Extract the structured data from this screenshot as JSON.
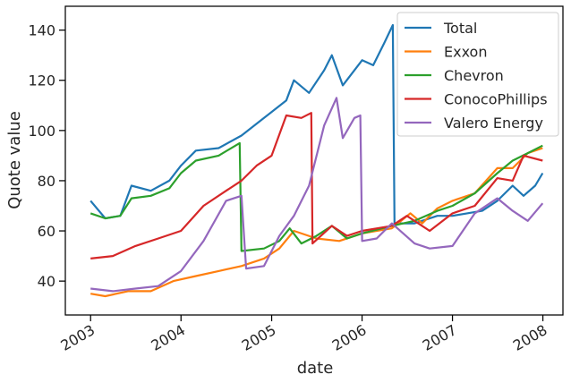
{
  "chart_data": {
    "type": "line",
    "xlabel": "date",
    "ylabel": "Quote value",
    "x_ticks": [
      "2003",
      "2004",
      "2005",
      "2006",
      "2007",
      "2008"
    ],
    "y_ticks": [
      40,
      60,
      80,
      100,
      120,
      140
    ],
    "xlim": [
      "2002-09-21",
      "2008-03-22"
    ],
    "ylim": [
      26.5,
      149.5
    ],
    "legend_position": "top-right",
    "grid": false,
    "series": [
      {
        "name": "Total",
        "color": "#1f77b4",
        "points": [
          [
            "2003-01-01",
            72
          ],
          [
            "2003-03-01",
            65
          ],
          [
            "2003-05-01",
            66
          ],
          [
            "2003-06-15",
            78
          ],
          [
            "2003-09-01",
            76
          ],
          [
            "2003-11-15",
            80
          ],
          [
            "2004-01-01",
            86
          ],
          [
            "2004-03-01",
            92
          ],
          [
            "2004-06-01",
            93
          ],
          [
            "2004-09-01",
            98
          ],
          [
            "2004-12-01",
            105
          ],
          [
            "2005-03-01",
            112
          ],
          [
            "2005-04-01",
            120
          ],
          [
            "2005-06-01",
            115
          ],
          [
            "2005-08-01",
            124
          ],
          [
            "2005-09-01",
            130
          ],
          [
            "2005-10-15",
            118
          ],
          [
            "2006-01-01",
            128
          ],
          [
            "2006-02-15",
            126
          ],
          [
            "2006-04-01",
            135
          ],
          [
            "2006-05-05",
            142
          ],
          [
            "2006-05-12",
            63
          ],
          [
            "2006-08-01",
            63
          ],
          [
            "2006-11-01",
            66
          ],
          [
            "2007-01-01",
            66
          ],
          [
            "2007-03-01",
            67
          ],
          [
            "2007-05-01",
            68
          ],
          [
            "2007-07-01",
            72
          ],
          [
            "2007-09-01",
            78
          ],
          [
            "2007-10-15",
            74
          ],
          [
            "2007-12-01",
            78
          ],
          [
            "2007-12-31",
            83
          ]
        ]
      },
      {
        "name": "Exxon",
        "color": "#ff7f0e",
        "points": [
          [
            "2003-01-01",
            35
          ],
          [
            "2003-03-01",
            34
          ],
          [
            "2003-06-01",
            36
          ],
          [
            "2003-09-01",
            36
          ],
          [
            "2003-12-01",
            40
          ],
          [
            "2004-03-01",
            42
          ],
          [
            "2004-06-01",
            44
          ],
          [
            "2004-09-01",
            46
          ],
          [
            "2004-12-01",
            49
          ],
          [
            "2005-02-01",
            53
          ],
          [
            "2005-04-01",
            60
          ],
          [
            "2005-07-01",
            57
          ],
          [
            "2005-10-01",
            56
          ],
          [
            "2006-01-01",
            59
          ],
          [
            "2006-05-01",
            61
          ],
          [
            "2006-07-15",
            67
          ],
          [
            "2006-09-01",
            63
          ],
          [
            "2006-11-01",
            69
          ],
          [
            "2007-01-01",
            72
          ],
          [
            "2007-04-01",
            75
          ],
          [
            "2007-07-01",
            85
          ],
          [
            "2007-09-01",
            85
          ],
          [
            "2007-11-01",
            91
          ],
          [
            "2007-12-31",
            93
          ]
        ]
      },
      {
        "name": "Chevron",
        "color": "#2ca02c",
        "points": [
          [
            "2003-01-01",
            67
          ],
          [
            "2003-03-01",
            65
          ],
          [
            "2003-05-01",
            66
          ],
          [
            "2003-06-15",
            73
          ],
          [
            "2003-09-01",
            74
          ],
          [
            "2003-11-15",
            77
          ],
          [
            "2004-01-01",
            83
          ],
          [
            "2004-03-01",
            88
          ],
          [
            "2004-06-01",
            90
          ],
          [
            "2004-08-25",
            95
          ],
          [
            "2004-09-01",
            52
          ],
          [
            "2004-12-01",
            53
          ],
          [
            "2005-02-01",
            56
          ],
          [
            "2005-03-15",
            61
          ],
          [
            "2005-05-01",
            55
          ],
          [
            "2005-07-01",
            58
          ],
          [
            "2005-09-01",
            62
          ],
          [
            "2005-11-01",
            57
          ],
          [
            "2006-01-01",
            59
          ],
          [
            "2006-05-01",
            62
          ],
          [
            "2006-08-01",
            64
          ],
          [
            "2006-11-01",
            68
          ],
          [
            "2007-01-01",
            70
          ],
          [
            "2007-04-01",
            75
          ],
          [
            "2007-07-01",
            83
          ],
          [
            "2007-09-01",
            88
          ],
          [
            "2007-11-01",
            91
          ],
          [
            "2007-12-31",
            94
          ]
        ]
      },
      {
        "name": "ConocoPhillips",
        "color": "#d62728",
        "points": [
          [
            "2003-01-01",
            49
          ],
          [
            "2003-04-01",
            50
          ],
          [
            "2003-07-01",
            54
          ],
          [
            "2003-10-01",
            57
          ],
          [
            "2004-01-01",
            60
          ],
          [
            "2004-04-01",
            70
          ],
          [
            "2004-07-01",
            76
          ],
          [
            "2004-09-01",
            80
          ],
          [
            "2004-11-01",
            86
          ],
          [
            "2005-01-01",
            90
          ],
          [
            "2005-03-01",
            106
          ],
          [
            "2005-05-01",
            105
          ],
          [
            "2005-06-10",
            107
          ],
          [
            "2005-06-15",
            55
          ],
          [
            "2005-09-01",
            62
          ],
          [
            "2005-11-01",
            58
          ],
          [
            "2006-01-01",
            60
          ],
          [
            "2006-05-01",
            62
          ],
          [
            "2006-07-01",
            66
          ],
          [
            "2006-10-01",
            60
          ],
          [
            "2007-01-01",
            67
          ],
          [
            "2007-04-01",
            70
          ],
          [
            "2007-07-01",
            81
          ],
          [
            "2007-09-01",
            80
          ],
          [
            "2007-10-15",
            90
          ],
          [
            "2007-12-31",
            88
          ]
        ]
      },
      {
        "name": "Valero Energy",
        "color": "#9467bd",
        "points": [
          [
            "2003-01-01",
            37
          ],
          [
            "2003-04-01",
            36
          ],
          [
            "2003-07-01",
            37
          ],
          [
            "2003-10-01",
            38
          ],
          [
            "2004-01-01",
            44
          ],
          [
            "2004-04-01",
            56
          ],
          [
            "2004-07-01",
            72
          ],
          [
            "2004-09-01",
            74
          ],
          [
            "2004-09-20",
            45
          ],
          [
            "2004-12-01",
            46
          ],
          [
            "2005-02-01",
            58
          ],
          [
            "2005-04-01",
            66
          ],
          [
            "2005-06-01",
            78
          ],
          [
            "2005-08-01",
            102
          ],
          [
            "2005-09-20",
            113
          ],
          [
            "2005-10-15",
            97
          ],
          [
            "2005-12-01",
            105
          ],
          [
            "2005-12-25",
            106
          ],
          [
            "2006-01-01",
            56
          ],
          [
            "2006-03-01",
            57
          ],
          [
            "2006-05-01",
            63
          ],
          [
            "2006-08-01",
            55
          ],
          [
            "2006-10-01",
            53
          ],
          [
            "2007-01-01",
            54
          ],
          [
            "2007-04-01",
            67
          ],
          [
            "2007-07-01",
            73
          ],
          [
            "2007-09-01",
            68
          ],
          [
            "2007-11-01",
            64
          ],
          [
            "2007-12-31",
            71
          ]
        ]
      }
    ]
  }
}
